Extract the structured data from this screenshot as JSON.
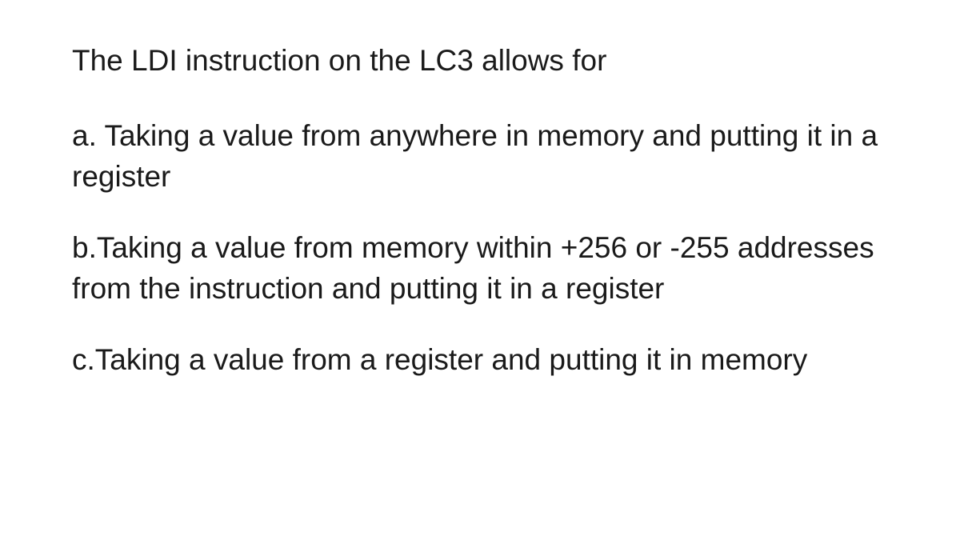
{
  "question": {
    "text": "The LDI instruction on the LC3 allows for",
    "options": [
      {
        "label": "a. Taking a value from anywhere in memory and putting it in a register"
      },
      {
        "label": "b.Taking a value from memory within +256 or -255 addresses from the instruction and putting it in a register"
      },
      {
        "label": "c.Taking a value from a register and putting it in memory"
      }
    ],
    "text_color": "#1a1a1a",
    "background_color": "#ffffff",
    "font_size": 37,
    "line_height": 1.38
  }
}
